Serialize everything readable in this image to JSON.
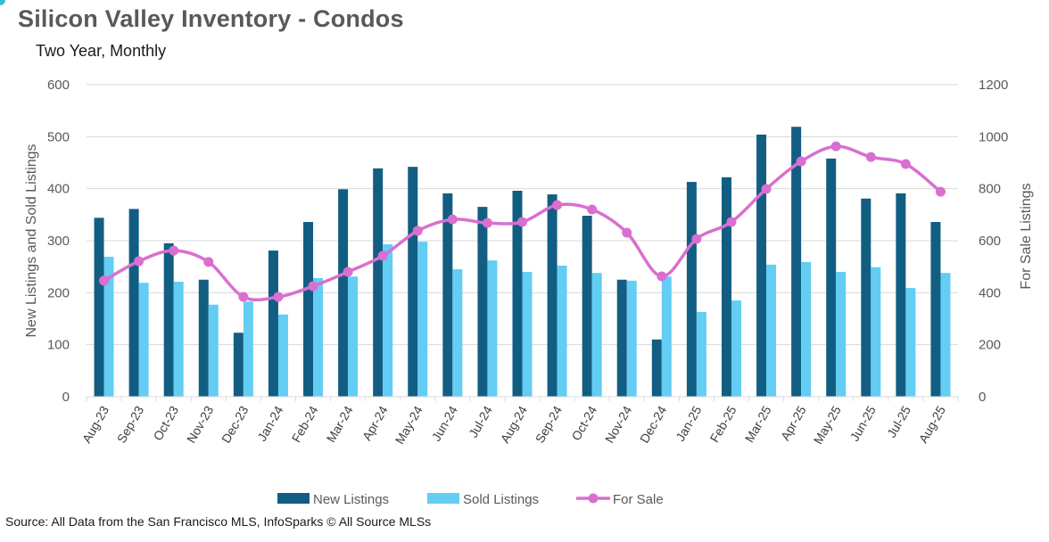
{
  "header": {
    "title": "Silicon Valley Inventory - Condos",
    "subtitle": "Two Year, Monthly"
  },
  "footer": {
    "source": "Source: All Data from the San Francisco MLS, InfoSparks © All Source MLSs"
  },
  "chart_data": {
    "type": "bar",
    "title": "Silicon Valley Inventory - Condos",
    "subtitle": "Two Year, Monthly",
    "xlabel": "",
    "ylabel": "New Listings and Sold Listings",
    "y2label": "For Sale Listings",
    "ylim": [
      0,
      600
    ],
    "y2lim": [
      0,
      1200
    ],
    "yticks": [
      0,
      100,
      200,
      300,
      400,
      500,
      600
    ],
    "y2ticks": [
      0,
      200,
      400,
      600,
      800,
      1000,
      1200
    ],
    "grid": true,
    "legend_position": "bottom",
    "categories": [
      "Aug-23",
      "Sep-23",
      "Oct-23",
      "Nov-23",
      "Dec-23",
      "Jan-24",
      "Feb-24",
      "Mar-24",
      "Apr-24",
      "May-24",
      "Jun-24",
      "Jul-24",
      "Aug-24",
      "Sep-24",
      "Oct-24",
      "Nov-24",
      "Dec-24",
      "Jan-25",
      "Feb-25",
      "Mar-25",
      "Apr-25",
      "May-25",
      "Jun-25",
      "Jul-25",
      "Aug-25"
    ],
    "series": [
      {
        "name": "New Listings",
        "type": "bar",
        "axis": "left",
        "color": "#125e82",
        "values": [
          344,
          361,
          295,
          225,
          123,
          281,
          336,
          399,
          439,
          442,
          391,
          365,
          396,
          389,
          348,
          225,
          110,
          413,
          422,
          504,
          519,
          458,
          381,
          391,
          336
        ]
      },
      {
        "name": "Sold Listings",
        "type": "bar",
        "axis": "left",
        "color": "#63cdf4",
        "values": [
          269,
          219,
          221,
          177,
          183,
          158,
          228,
          231,
          293,
          298,
          245,
          262,
          240,
          252,
          238,
          223,
          231,
          163,
          185,
          254,
          259,
          240,
          249,
          209,
          238
        ]
      },
      {
        "name": "For Sale",
        "type": "line",
        "axis": "right",
        "color": "#d96fd0",
        "smooth": true,
        "markers": true,
        "values": [
          446,
          521,
          562,
          518,
          384,
          384,
          425,
          480,
          542,
          638,
          682,
          668,
          672,
          737,
          720,
          631,
          463,
          607,
          672,
          799,
          905,
          963,
          922,
          895,
          788
        ]
      }
    ]
  }
}
